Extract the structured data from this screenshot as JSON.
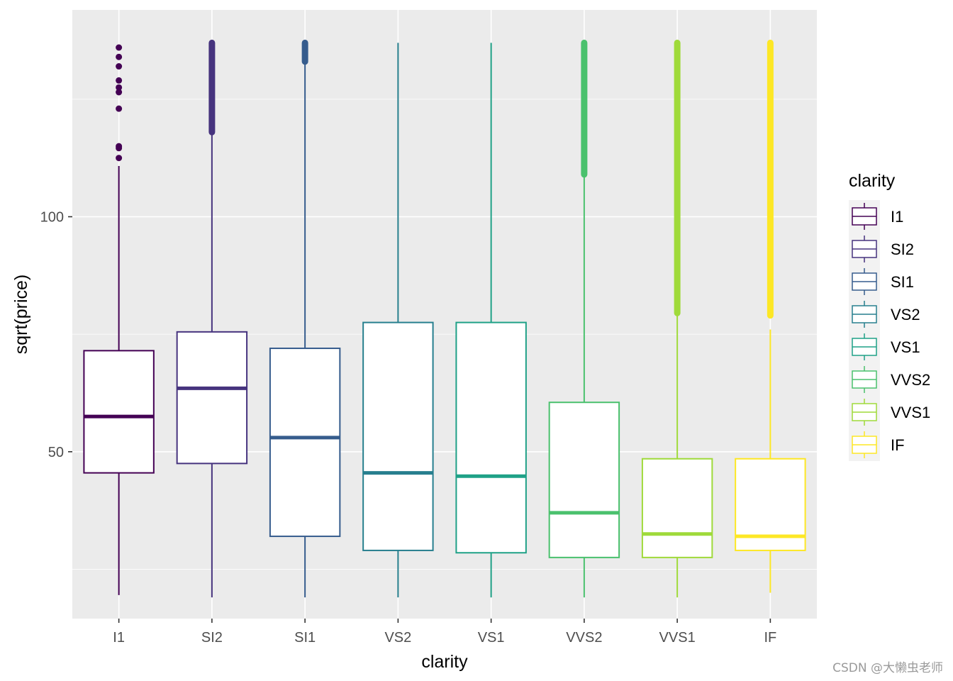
{
  "chart_data": {
    "type": "boxplot",
    "title": "",
    "xlabel": "clarity",
    "ylabel": "sqrt(price)",
    "ylim": [
      14.5,
      144.0
    ],
    "y_ticks": [
      50,
      100
    ],
    "y_tick_labels": [
      "50",
      "100"
    ],
    "grid": true,
    "legend": {
      "title": "clarity",
      "position": "right"
    },
    "categories": [
      "I1",
      "SI2",
      "SI1",
      "VS2",
      "VS1",
      "VVS2",
      "VVS1",
      "IF"
    ],
    "colors": [
      "#440154",
      "#46337E",
      "#365C8D",
      "#277F8E",
      "#1FA187",
      "#4AC16D",
      "#9FDA3A",
      "#FDE725"
    ],
    "boxes": [
      {
        "name": "I1",
        "whisker_low": 19.5,
        "q1": 45.5,
        "median": 57.5,
        "q3": 71.5,
        "whisker_high": 110.8,
        "outliers": [
          112.5,
          114.6,
          115.0,
          123.0,
          126.5,
          127.5,
          129.0,
          132.0,
          134.0,
          136.0
        ]
      },
      {
        "name": "SI2",
        "whisker_low": 19.0,
        "q1": 47.5,
        "median": 63.5,
        "q3": 75.5,
        "whisker_high": 117.5,
        "outlier_band": [
          118.0,
          137.0
        ]
      },
      {
        "name": "SI1",
        "whisker_low": 19.0,
        "q1": 32.0,
        "median": 53.0,
        "q3": 72.0,
        "whisker_high": 132.5,
        "outlier_band": [
          133.0,
          137.0
        ]
      },
      {
        "name": "VS2",
        "whisker_low": 19.0,
        "q1": 29.0,
        "median": 45.5,
        "q3": 77.5,
        "whisker_high": 137.0
      },
      {
        "name": "VS1",
        "whisker_low": 19.0,
        "q1": 28.5,
        "median": 44.8,
        "q3": 77.5,
        "whisker_high": 137.0
      },
      {
        "name": "VVS2",
        "whisker_low": 19.0,
        "q1": 27.5,
        "median": 37.0,
        "q3": 60.5,
        "whisker_high": 108.5,
        "outlier_band": [
          109.0,
          137.0
        ]
      },
      {
        "name": "VVS1",
        "whisker_low": 19.0,
        "q1": 27.5,
        "median": 32.5,
        "q3": 48.5,
        "whisker_high": 79.0,
        "outlier_band": [
          79.5,
          137.0
        ]
      },
      {
        "name": "IF",
        "whisker_low": 20.0,
        "q1": 29.0,
        "median": 32.0,
        "q3": 48.5,
        "whisker_high": 76.0,
        "outlier_band": [
          79.0,
          137.0
        ]
      }
    ]
  },
  "watermark": "CSDN @大懒虫老师"
}
